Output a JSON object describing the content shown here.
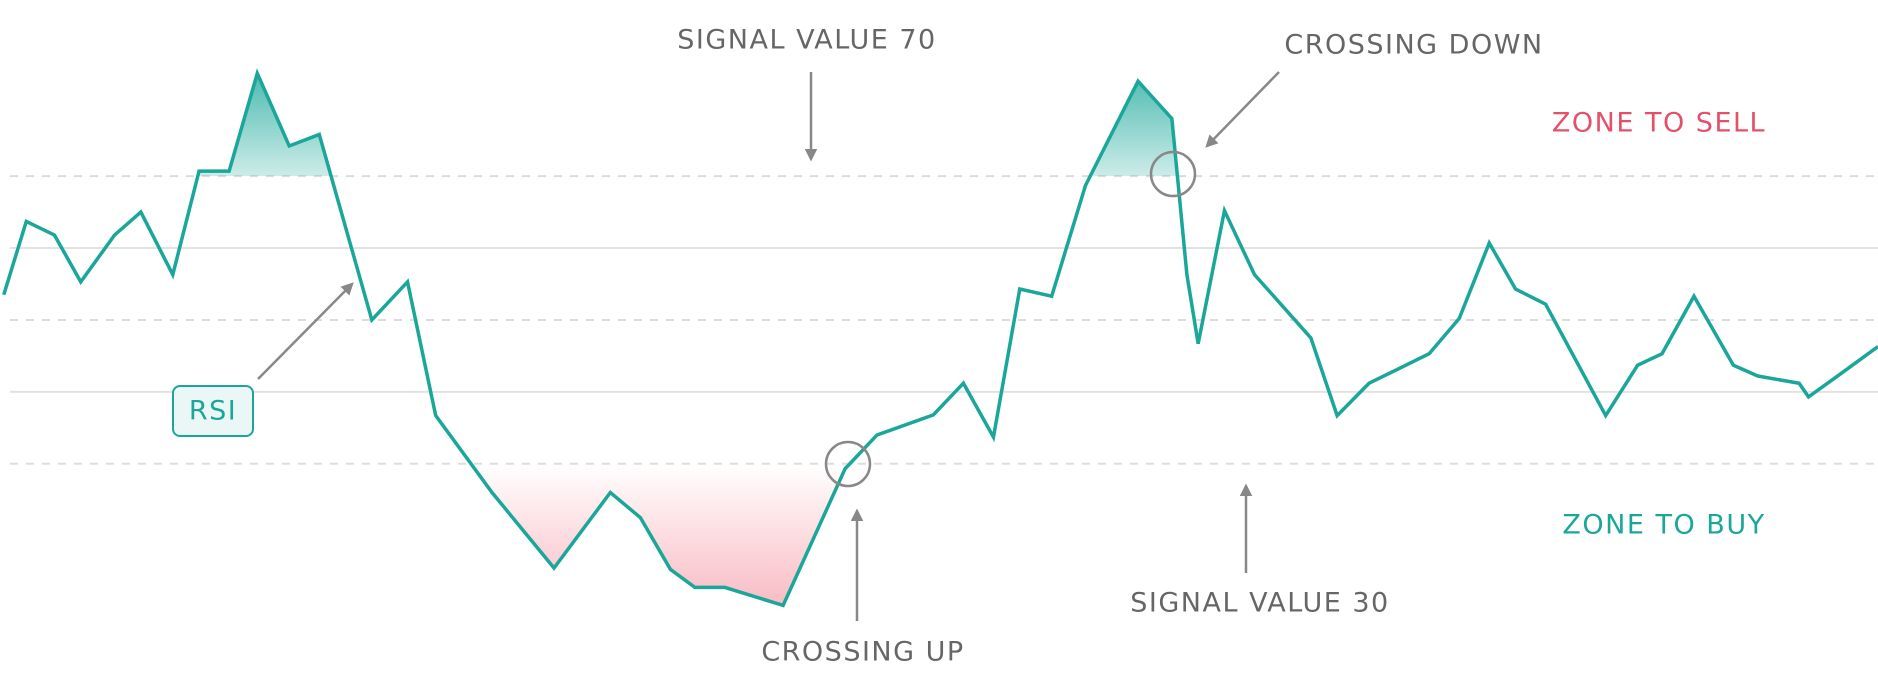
{
  "chart_data": {
    "type": "line",
    "series": [
      {
        "name": "RSI",
        "color": "#1aa79a",
        "x": [
          0.2,
          1.4,
          2.9,
          4.3,
          6.1,
          7.5,
          9.2,
          10.6,
          12.2,
          13.7,
          15.4,
          17,
          19.8,
          21.7,
          23.2,
          26.2,
          29.5,
          32.5,
          34.1,
          35.7,
          37,
          38.6,
          41.7,
          45,
          46.7,
          49.7,
          51.3,
          52.9,
          54.3,
          56,
          57.8,
          60.6,
          62.4,
          63.2,
          63.8,
          65.2,
          66.8,
          69.8,
          71.2,
          72.9,
          76.1,
          77.7,
          79.3,
          80.7,
          82.3,
          85.5,
          87.2,
          88.5,
          90.2,
          92.3,
          93.6,
          95.8,
          96.3,
          97.9,
          100
        ],
        "values": [
          53.5,
          63.7,
          61.8,
          55.3,
          61.8,
          65,
          56.3,
          70.7,
          70.7,
          84.3,
          74.2,
          75.8,
          50,
          55.3,
          36.7,
          26,
          15.5,
          26,
          22.5,
          15.3,
          12.8,
          12.8,
          10.3,
          29.3,
          34,
          36.8,
          41.2,
          33.7,
          54.3,
          53.3,
          68.7,
          83.2,
          78,
          56.3,
          46.7,
          65.2,
          56.3,
          47.5,
          36.7,
          41.2,
          45.3,
          50.2,
          60.7,
          54.3,
          52.2,
          36.7,
          43.7,
          45.3,
          53.3,
          43.7,
          42.2,
          41.2,
          39.3,
          42.3,
          46.3
        ]
      }
    ],
    "xlim": [
      0,
      100
    ],
    "ylim": [
      0.2,
      94.5
    ],
    "dashed_gridlines": [
      30,
      50,
      70
    ],
    "solid_gridlines": [
      40,
      60
    ],
    "overbought": 70,
    "oversold": 30,
    "overbought_color": "#1aa79a",
    "oversold_color": "#f7a8b3",
    "annotations": {
      "signal_high": "SIGNAL VALUE 70",
      "crossing_down": "CROSSING DOWN",
      "zone_sell": "ZONE TO SELL",
      "rsi": "RSI",
      "crossing_up": "CROSSING UP",
      "signal_low": "SIGNAL VALUE 30",
      "zone_buy": "ZONE TO BUY"
    }
  }
}
